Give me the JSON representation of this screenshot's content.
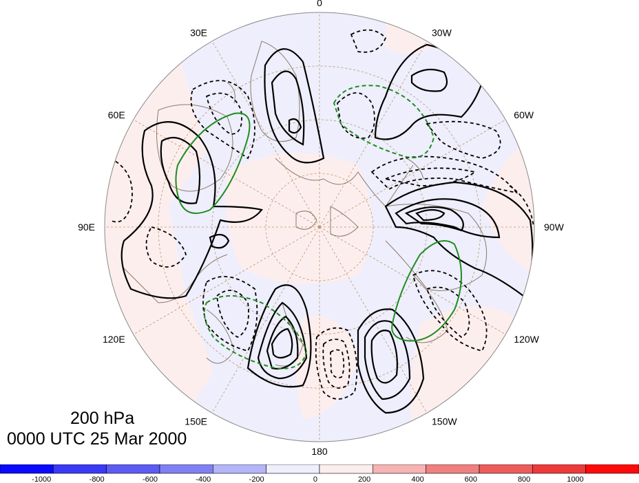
{
  "map": {
    "projection": "north-polar-stereographic",
    "field": "200 hPa streamfunction / height anomaly",
    "longitude_labels": [
      {
        "text": "0",
        "lon": 0
      },
      {
        "text": "30W",
        "lon": -30
      },
      {
        "text": "60W",
        "lon": -60
      },
      {
        "text": "90W",
        "lon": -90
      },
      {
        "text": "120W",
        "lon": -120
      },
      {
        "text": "150W",
        "lon": -150
      },
      {
        "text": "180",
        "lon": 180
      },
      {
        "text": "150E",
        "lon": 150
      },
      {
        "text": "120E",
        "lon": 120
      },
      {
        "text": "90E",
        "lon": 90
      },
      {
        "text": "60E",
        "lon": 60
      },
      {
        "text": "30E",
        "lon": 30
      }
    ],
    "colors": {
      "negative_shade": "#eeeefc",
      "positive_shade": "#fdeeee",
      "contour_positive": "#000000",
      "contour_negative": "#000000",
      "contour_green": "#1e8c1e",
      "coastline": "#8a7a66",
      "graticule": "#b8946a"
    }
  },
  "caption": {
    "level": "200 hPa",
    "time": "0000 UTC 25 Mar 2000"
  },
  "colorbar": {
    "tick_labels": [
      "-1000",
      "-800",
      "-600",
      "-400",
      "-200",
      "0",
      "200",
      "400",
      "600",
      "800",
      "1000"
    ],
    "colors": [
      "#0a0aff",
      "#3a3af5",
      "#5c5cf2",
      "#8080f2",
      "#b4b4f8",
      "#eeeefc",
      "#fdeeee",
      "#f7b4b4",
      "#f08080",
      "#ec5c5c",
      "#ee3a3a",
      "#ff0a0a"
    ]
  }
}
